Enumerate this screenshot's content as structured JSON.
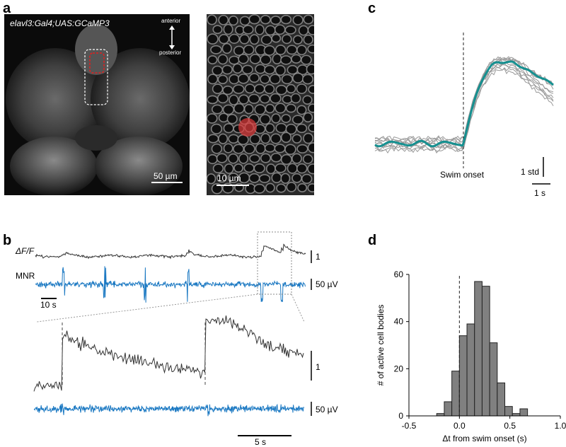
{
  "panels": {
    "a": {
      "letter": "a",
      "genotype": "elavl3:Gal4;UAS:GCaMP3",
      "orientation": {
        "top": "anterior",
        "bottom": "posterior"
      },
      "scalebar_left": "50 µm",
      "scalebar_right": "10 µm"
    },
    "b": {
      "letter": "b",
      "trace_label": "ΔF/F",
      "mnr_label": "MNR",
      "scale_dff_top": "1",
      "scale_uv_top": "50 µV",
      "time_scale_top": "10 s",
      "scale_dff_bottom": "1",
      "scale_uv_bottom": "50 µV",
      "time_scale_bottom": "5 s"
    },
    "c": {
      "letter": "c",
      "onset_label": "Swim onset",
      "scale_y": "1 std",
      "scale_x": "1 s"
    },
    "d": {
      "letter": "d"
    }
  },
  "colors": {
    "trace": "#333333",
    "mnr": "#1a78c2",
    "mean_trace": "#159090",
    "roi": "#e02020",
    "bar": "#808080"
  },
  "chart_data": {
    "type": "bar",
    "title": "",
    "xlabel": "Δt from swim onset (s)",
    "ylabel": "# of active cell bodies",
    "xlim": [
      -0.5,
      1.0
    ],
    "ylim": [
      0,
      60
    ],
    "x_ticks": [
      "-0.5",
      "0.0",
      "0.5",
      "1.0"
    ],
    "y_ticks": [
      "0",
      "20",
      "40",
      "60"
    ],
    "bin_width": 0.075,
    "bin_starts": [
      -0.225,
      -0.15,
      -0.075,
      0.0,
      0.075,
      0.15,
      0.225,
      0.3,
      0.375,
      0.45,
      0.525,
      0.6,
      0.675
    ],
    "values": [
      1,
      6,
      19,
      34,
      39,
      57,
      55,
      31,
      14,
      4,
      1,
      3,
      0
    ],
    "reference_line_x": 0
  }
}
